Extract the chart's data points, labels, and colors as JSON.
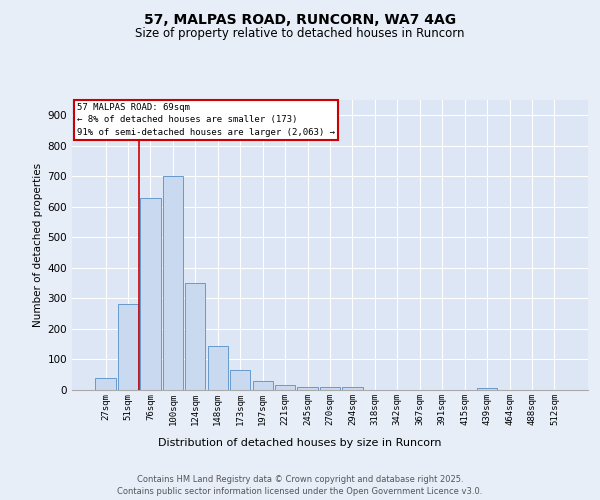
{
  "title_line1": "57, MALPAS ROAD, RUNCORN, WA7 4AG",
  "title_line2": "Size of property relative to detached houses in Runcorn",
  "xlabel": "Distribution of detached houses by size in Runcorn",
  "ylabel": "Number of detached properties",
  "categories": [
    "27sqm",
    "51sqm",
    "76sqm",
    "100sqm",
    "124sqm",
    "148sqm",
    "173sqm",
    "197sqm",
    "221sqm",
    "245sqm",
    "270sqm",
    "294sqm",
    "318sqm",
    "342sqm",
    "367sqm",
    "391sqm",
    "415sqm",
    "439sqm",
    "464sqm",
    "488sqm",
    "512sqm"
  ],
  "values": [
    40,
    283,
    630,
    700,
    350,
    145,
    65,
    28,
    15,
    10,
    10,
    10,
    0,
    0,
    0,
    0,
    0,
    8,
    0,
    0,
    0
  ],
  "bar_color": "#c9d9f0",
  "bar_edge_color": "#6699cc",
  "background_color": "#dce6f5",
  "grid_color": "#ffffff",
  "fig_background_color": "#e8eef8",
  "annotation_box_facecolor": "#ffffff",
  "annotation_box_edgecolor": "#cc0000",
  "annotation_text_line1": "57 MALPAS ROAD: 69sqm",
  "annotation_text_line2": "← 8% of detached houses are smaller (173)",
  "annotation_text_line3": "91% of semi-detached houses are larger (2,063) →",
  "red_line_x": 1.5,
  "ylim": [
    0,
    950
  ],
  "yticks": [
    0,
    100,
    200,
    300,
    400,
    500,
    600,
    700,
    800,
    900
  ],
  "footer_line1": "Contains HM Land Registry data © Crown copyright and database right 2025.",
  "footer_line2": "Contains public sector information licensed under the Open Government Licence v3.0."
}
